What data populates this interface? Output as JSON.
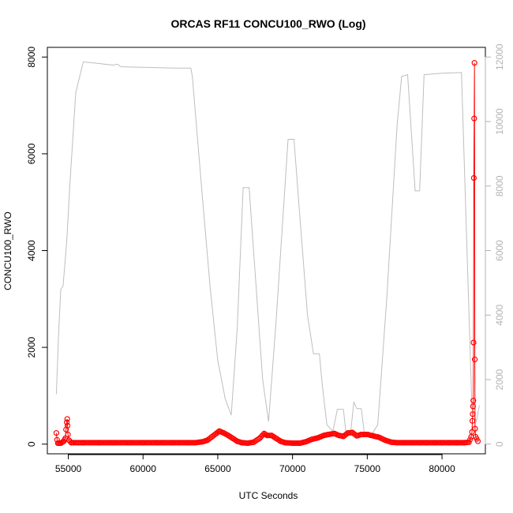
{
  "chart_data": {
    "type": "line",
    "title": "ORCAS RF11 CONCU100_RWO (Log)",
    "xlabel": "UTC Seconds",
    "ylabel": "CONCU100_RWO",
    "y2label": "",
    "xlim": [
      53600,
      82900
    ],
    "ylim": [
      -200,
      8200
    ],
    "y2lim": [
      -300,
      12300
    ],
    "x_ticks": [
      55000,
      60000,
      65000,
      70000,
      75000,
      80000
    ],
    "y_ticks": [
      0,
      2000,
      4000,
      6000,
      8000
    ],
    "y2_ticks": [
      0,
      2000,
      4000,
      6000,
      8000,
      10000,
      12000
    ],
    "grid": false,
    "colors": {
      "primary": "#ff0000",
      "secondary": "#bebebe",
      "frame": "#000000",
      "right_axis": "#b3b3b3"
    },
    "series": [
      {
        "axis": "left",
        "style": "points-and-line",
        "points": [
          [
            54200,
            230
          ],
          [
            54250,
            90
          ],
          [
            54300,
            20
          ],
          [
            54500,
            20
          ],
          [
            54700,
            60
          ],
          [
            54800,
            120
          ],
          [
            54850,
            300
          ],
          [
            54900,
            450
          ],
          [
            54930,
            520
          ],
          [
            54950,
            380
          ],
          [
            54980,
            200
          ],
          [
            55050,
            80
          ],
          [
            55200,
            30
          ],
          [
            56000,
            30
          ],
          [
            57000,
            30
          ],
          [
            58000,
            30
          ],
          [
            59000,
            30
          ],
          [
            60000,
            30
          ],
          [
            61000,
            30
          ],
          [
            62000,
            30
          ],
          [
            63000,
            30
          ],
          [
            63500,
            30
          ],
          [
            64000,
            50
          ],
          [
            64300,
            80
          ],
          [
            64600,
            150
          ],
          [
            64900,
            220
          ],
          [
            65100,
            270
          ],
          [
            65400,
            230
          ],
          [
            65700,
            180
          ],
          [
            66000,
            120
          ],
          [
            66300,
            60
          ],
          [
            66600,
            30
          ],
          [
            67000,
            20
          ],
          [
            67400,
            40
          ],
          [
            67800,
            120
          ],
          [
            68100,
            220
          ],
          [
            68300,
            180
          ],
          [
            68600,
            180
          ],
          [
            68900,
            120
          ],
          [
            69200,
            60
          ],
          [
            69500,
            30
          ],
          [
            70000,
            20
          ],
          [
            70500,
            20
          ],
          [
            70900,
            50
          ],
          [
            71300,
            100
          ],
          [
            71700,
            130
          ],
          [
            72100,
            180
          ],
          [
            72400,
            200
          ],
          [
            72800,
            220
          ],
          [
            73100,
            180
          ],
          [
            73400,
            160
          ],
          [
            73700,
            230
          ],
          [
            74000,
            240
          ],
          [
            74300,
            170
          ],
          [
            74600,
            200
          ],
          [
            75000,
            200
          ],
          [
            75400,
            170
          ],
          [
            75800,
            140
          ],
          [
            76200,
            80
          ],
          [
            76600,
            40
          ],
          [
            77000,
            30
          ],
          [
            77500,
            30
          ],
          [
            78000,
            30
          ],
          [
            78500,
            30
          ],
          [
            79000,
            30
          ],
          [
            79500,
            30
          ],
          [
            80000,
            30
          ],
          [
            80500,
            30
          ],
          [
            81000,
            30
          ],
          [
            81500,
            30
          ],
          [
            81800,
            40
          ],
          [
            81950,
            150
          ],
          [
            82000,
            250
          ],
          [
            82030,
            480
          ],
          [
            82050,
            620
          ],
          [
            82070,
            780
          ],
          [
            82090,
            900
          ],
          [
            82110,
            2100
          ],
          [
            82130,
            5500
          ],
          [
            82150,
            6730
          ],
          [
            82170,
            7880
          ],
          [
            82190,
            1750
          ],
          [
            82210,
            320
          ],
          [
            82250,
            150
          ],
          [
            82400,
            60
          ]
        ]
      },
      {
        "axis": "right",
        "style": "line",
        "points": [
          [
            54200,
            1550
          ],
          [
            54350,
            3400
          ],
          [
            54500,
            4800
          ],
          [
            54650,
            4900
          ],
          [
            54900,
            6300
          ],
          [
            55100,
            8000
          ],
          [
            55500,
            10900
          ],
          [
            56000,
            11850
          ],
          [
            57000,
            11800
          ],
          [
            58000,
            11750
          ],
          [
            58300,
            11780
          ],
          [
            58500,
            11700
          ],
          [
            59000,
            11690
          ],
          [
            60000,
            11680
          ],
          [
            61000,
            11670
          ],
          [
            62000,
            11660
          ],
          [
            63200,
            11660
          ],
          [
            63300,
            11400
          ],
          [
            64000,
            7500
          ],
          [
            64500,
            4800
          ],
          [
            65000,
            2600
          ],
          [
            65500,
            1400
          ],
          [
            65900,
            900
          ],
          [
            66300,
            3600
          ],
          [
            66700,
            7950
          ],
          [
            67100,
            7950
          ],
          [
            67500,
            5300
          ],
          [
            68000,
            2000
          ],
          [
            68400,
            700
          ],
          [
            68900,
            3800
          ],
          [
            69700,
            9450
          ],
          [
            70100,
            9450
          ],
          [
            70500,
            7000
          ],
          [
            71000,
            4000
          ],
          [
            71400,
            2800
          ],
          [
            71800,
            2800
          ],
          [
            72000,
            1800
          ],
          [
            72300,
            600
          ],
          [
            72700,
            400
          ],
          [
            73000,
            1080
          ],
          [
            73400,
            1080
          ],
          [
            73600,
            250
          ],
          [
            73900,
            400
          ],
          [
            74100,
            1300
          ],
          [
            74300,
            1100
          ],
          [
            74600,
            1100
          ],
          [
            74800,
            350
          ],
          [
            75300,
            300
          ],
          [
            75700,
            600
          ],
          [
            76300,
            4500
          ],
          [
            77000,
            9900
          ],
          [
            77300,
            11400
          ],
          [
            77700,
            11450
          ],
          [
            78200,
            7850
          ],
          [
            78500,
            7850
          ],
          [
            78800,
            11450
          ],
          [
            80000,
            11500
          ],
          [
            81300,
            11520
          ],
          [
            82000,
            1100
          ],
          [
            82300,
            700
          ],
          [
            82500,
            1200
          ]
        ]
      }
    ]
  }
}
